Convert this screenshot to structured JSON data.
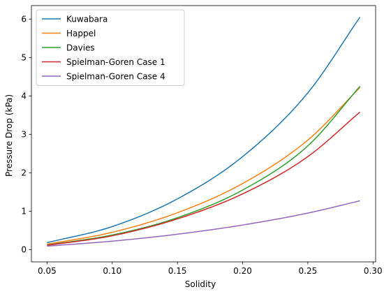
{
  "chart_data": {
    "type": "line",
    "xlabel": "Solidity",
    "ylabel": "Pressure Drop (kPa)",
    "xlim": [
      0.038,
      0.302
    ],
    "ylim": [
      -0.32,
      6.35
    ],
    "x_ticks": [
      0.05,
      0.1,
      0.15,
      0.2,
      0.25,
      0.3
    ],
    "x_tick_labels": [
      "0.05",
      "0.10",
      "0.15",
      "0.20",
      "0.25",
      "0.30"
    ],
    "y_ticks": [
      0,
      1,
      2,
      3,
      4,
      5,
      6
    ],
    "y_tick_labels": [
      "0",
      "1",
      "2",
      "3",
      "4",
      "5",
      "6"
    ],
    "grid": false,
    "legend_position": "top-left",
    "x": [
      0.05,
      0.1,
      0.15,
      0.2,
      0.25,
      0.29
    ],
    "series": [
      {
        "name": "Kuwabara",
        "color": "#1f77b4",
        "values": [
          0.18,
          0.6,
          1.32,
          2.42,
          4.08,
          6.05
        ]
      },
      {
        "name": "Happel",
        "color": "#ff7f0e",
        "values": [
          0.14,
          0.45,
          0.96,
          1.72,
          2.85,
          4.22
        ]
      },
      {
        "name": "Davies",
        "color": "#2ca02c",
        "values": [
          0.12,
          0.38,
          0.83,
          1.55,
          2.7,
          4.25
        ]
      },
      {
        "name": "Spielman-Goren Case 1",
        "color": "#d62728",
        "values": [
          0.11,
          0.36,
          0.8,
          1.45,
          2.42,
          3.58
        ]
      },
      {
        "name": "Spielman-Goren Case 4",
        "color": "#9467bd",
        "values": [
          0.09,
          0.22,
          0.4,
          0.64,
          0.95,
          1.27
        ]
      }
    ]
  }
}
